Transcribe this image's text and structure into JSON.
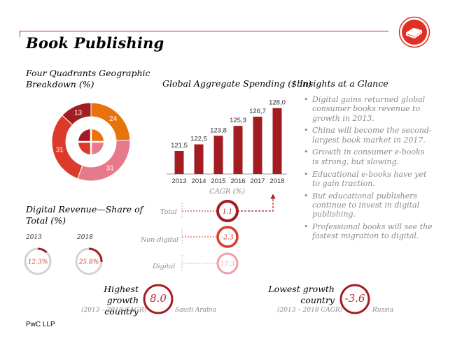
{
  "page": {
    "title": "Book Publishing",
    "footer": "PwC LLP"
  },
  "logo": {
    "icon": "book-icon",
    "color": "#e03024"
  },
  "quadrants": {
    "heading": "Four Quadrants Geographic Breakdown (%)",
    "heading_line1": "Four Quadrants Geographic",
    "heading_line2": "Breakdown (%)"
  },
  "spending": {
    "heading": "Global Aggregate Spending ($bn)",
    "cagr_label": "CAGR (%)"
  },
  "insights": {
    "heading": "Insights at a Glance",
    "bullet": "•",
    "items": [
      "Digital gains returned global consumer books revenue to growth in 2013.",
      "China will become the second-largest book market in 2017.",
      "Growth in consumer e-books is strong, but slowing.",
      "Educational e-books have yet to gain traction.",
      "But educational publishers continue to invest in digital publishing.",
      "Professional books will see the fastest migration to digital."
    ]
  },
  "digital_revenue": {
    "heading_line1": "Digital Revenue—Share of",
    "heading_line2": "Total (%)"
  },
  "cagr_rows": {
    "total_label": "Total",
    "nondigital_label": "Non-digital",
    "digital_label": "Digital"
  },
  "highest": {
    "label_line1": "Highest growth",
    "label_line2": "country",
    "value": "8.0",
    "period": "(2013 – 2018 CAGR)",
    "country": "Saudi Arabia"
  },
  "lowest": {
    "label_line1": "Lowest growth",
    "label_line2": "country",
    "value": "-3.6",
    "period": "(2013 – 2018 CAGR)",
    "country": "Russia"
  },
  "colors": {
    "dark_red": "#a31c22",
    "red": "#dc3a2b",
    "orange": "#e8720c",
    "pink": "#e67a8b",
    "light_pink": "#efa0a8",
    "grey": "#d3d3d3",
    "text_grey": "#8a8a8a"
  },
  "chart_data": [
    {
      "type": "bar",
      "name": "spending",
      "categories": [
        "2013",
        "2014",
        "2015",
        "2016",
        "2017",
        "2018"
      ],
      "values": [
        121.5,
        122.5,
        123.8,
        125.3,
        126.7,
        128.0
      ],
      "value_labels": [
        "121,5",
        "122,5",
        "123,8",
        "125,3",
        "126,7",
        "128,0"
      ],
      "color": "#a31c22",
      "ylim": [
        118,
        128.5
      ]
    },
    {
      "type": "pie",
      "name": "quadrants",
      "style": "ring",
      "slices": [
        {
          "value": 24,
          "label": "24",
          "color": "#e8720c"
        },
        {
          "value": 31,
          "label": "31",
          "color": "#e67a8b"
        },
        {
          "value": 31,
          "label": "31",
          "color": "#dc3a2b"
        },
        {
          "value": 13,
          "label": "13",
          "color": "#a31c22"
        }
      ],
      "inner_pie": [
        {
          "value": 25,
          "color": "#e8720c"
        },
        {
          "value": 25,
          "color": "#e67a8b"
        },
        {
          "value": 25,
          "color": "#dc3a2b"
        },
        {
          "value": 25,
          "color": "#a31c22"
        }
      ]
    },
    {
      "type": "pie",
      "name": "digital_share",
      "style": "donut-gauge",
      "items": [
        {
          "year": "2013",
          "value": 12.3,
          "label": "12.3%"
        },
        {
          "year": "2018",
          "value": 25.8,
          "label": "25.8%"
        }
      ]
    },
    {
      "type": "table",
      "name": "cagr",
      "rows": [
        {
          "category": "Total",
          "value": 1.1,
          "label": "1.1",
          "color": "#a31c22"
        },
        {
          "category": "Non-digital",
          "value": -2.3,
          "label": "-2.3",
          "color": "#dc3a2b"
        },
        {
          "category": "Digital",
          "value": 17.3,
          "label": "17.3",
          "color": "#efa0a8"
        }
      ]
    }
  ]
}
